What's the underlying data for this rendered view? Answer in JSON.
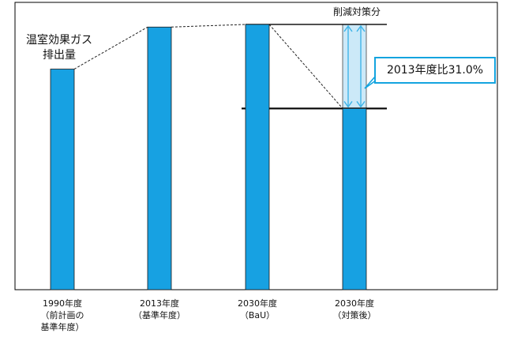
{
  "chart_data": {
    "type": "bar",
    "title": "",
    "ylabel": "温室効果ガス\n排出量",
    "xlabel": "",
    "categories": [
      "1990年度\n（前計画の\n基準年度）",
      "2013年度\n（基準年度）",
      "2030年度\n（BaU）",
      "2030年度\n（対策後）"
    ],
    "values": [
      84,
      100,
      101,
      69
    ],
    "ylim": [
      0,
      110
    ],
    "grid": false,
    "colors": {
      "bar": "#17a1e2",
      "reduction_band": "#cce9f8",
      "arrow": "#3fb4e8",
      "callout_border": "#14a4df"
    },
    "annotations": {
      "reduction_label": "削減対策分",
      "reduction_note": "2013年度比31.0%"
    }
  }
}
